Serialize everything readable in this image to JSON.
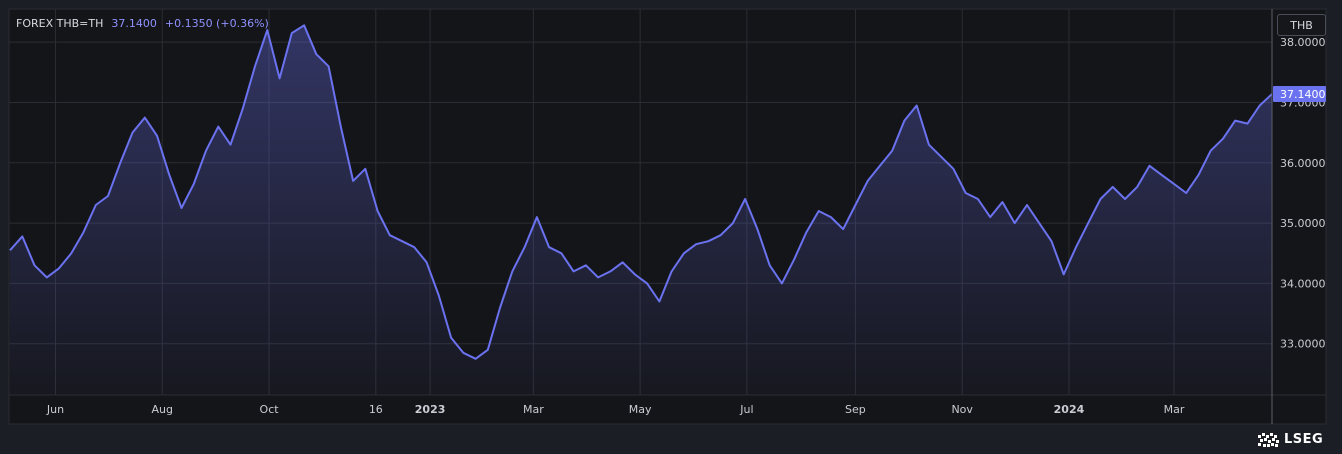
{
  "header": {
    "symbol": "FOREX THB=TH",
    "last": "37.1400",
    "change": "+0.1350 (+0.36%)"
  },
  "currency_badge": "THB",
  "brand": "LSEG",
  "colors": {
    "background": "#1b1e25",
    "plot_background": "#141519",
    "line": "#6b72f0",
    "last_price_tag": "#6b72f0",
    "grid": "#2a2d33",
    "axis_text": "#c9ccd3"
  },
  "chart_data": {
    "type": "area",
    "title": "FOREX THB=TH",
    "xlabel": "",
    "ylabel": "",
    "ylim": [
      32.15,
      38.55
    ],
    "grid": true,
    "y_ticks": [
      "33.0000",
      "34.0000",
      "35.0000",
      "36.0000",
      "37.0000",
      "38.0000"
    ],
    "y_tick_values": [
      33,
      34,
      35,
      36,
      37,
      38
    ],
    "x_ticks": [
      {
        "label": "Jun",
        "date": "2022-06-01",
        "bold": false
      },
      {
        "label": "Aug",
        "date": "2022-08-01",
        "bold": false
      },
      {
        "label": "Oct",
        "date": "2022-10-01",
        "bold": false
      },
      {
        "label": "16",
        "date": "2022-12-01",
        "bold": false
      },
      {
        "label": "2023",
        "date": "2023-01-01",
        "bold": true
      },
      {
        "label": "Mar",
        "date": "2023-03-01",
        "bold": false
      },
      {
        "label": "May",
        "date": "2023-05-01",
        "bold": false
      },
      {
        "label": "Jul",
        "date": "2023-07-01",
        "bold": false
      },
      {
        "label": "Sep",
        "date": "2023-09-01",
        "bold": false
      },
      {
        "label": "Nov",
        "date": "2023-11-01",
        "bold": false
      },
      {
        "label": "2024",
        "date": "2024-01-01",
        "bold": true
      },
      {
        "label": "Mar",
        "date": "2024-03-01",
        "bold": false
      }
    ],
    "last_value_label": "37.1400",
    "series": [
      {
        "name": "THB=TH",
        "points": [
          [
            "2022-05-06",
            34.55
          ],
          [
            "2022-05-13",
            34.78
          ],
          [
            "2022-05-20",
            34.3
          ],
          [
            "2022-05-27",
            34.1
          ],
          [
            "2022-06-03",
            34.25
          ],
          [
            "2022-06-10",
            34.5
          ],
          [
            "2022-06-17",
            34.85
          ],
          [
            "2022-06-24",
            35.3
          ],
          [
            "2022-07-01",
            35.45
          ],
          [
            "2022-07-08",
            36.0
          ],
          [
            "2022-07-15",
            36.5
          ],
          [
            "2022-07-22",
            36.75
          ],
          [
            "2022-07-29",
            36.45
          ],
          [
            "2022-08-05",
            35.8
          ],
          [
            "2022-08-12",
            35.25
          ],
          [
            "2022-08-19",
            35.65
          ],
          [
            "2022-08-26",
            36.2
          ],
          [
            "2022-09-02",
            36.6
          ],
          [
            "2022-09-09",
            36.3
          ],
          [
            "2022-09-16",
            36.9
          ],
          [
            "2022-09-23",
            37.6
          ],
          [
            "2022-09-30",
            38.2
          ],
          [
            "2022-10-07",
            37.4
          ],
          [
            "2022-10-14",
            38.15
          ],
          [
            "2022-10-21",
            38.28
          ],
          [
            "2022-10-28",
            37.8
          ],
          [
            "2022-11-04",
            37.6
          ],
          [
            "2022-11-11",
            36.6
          ],
          [
            "2022-11-18",
            35.7
          ],
          [
            "2022-11-25",
            35.9
          ],
          [
            "2022-12-02",
            35.2
          ],
          [
            "2022-12-09",
            34.8
          ],
          [
            "2022-12-16",
            34.7
          ],
          [
            "2022-12-23",
            34.6
          ],
          [
            "2022-12-30",
            34.35
          ],
          [
            "2023-01-06",
            33.8
          ],
          [
            "2023-01-13",
            33.1
          ],
          [
            "2023-01-20",
            32.85
          ],
          [
            "2023-01-27",
            32.75
          ],
          [
            "2023-02-03",
            32.9
          ],
          [
            "2023-02-10",
            33.6
          ],
          [
            "2023-02-17",
            34.2
          ],
          [
            "2023-02-24",
            34.6
          ],
          [
            "2023-03-03",
            35.1
          ],
          [
            "2023-03-10",
            34.6
          ],
          [
            "2023-03-17",
            34.5
          ],
          [
            "2023-03-24",
            34.2
          ],
          [
            "2023-03-31",
            34.3
          ],
          [
            "2023-04-07",
            34.1
          ],
          [
            "2023-04-14",
            34.2
          ],
          [
            "2023-04-21",
            34.35
          ],
          [
            "2023-04-28",
            34.15
          ],
          [
            "2023-05-05",
            34.0
          ],
          [
            "2023-05-12",
            33.7
          ],
          [
            "2023-05-19",
            34.2
          ],
          [
            "2023-05-26",
            34.5
          ],
          [
            "2023-06-02",
            34.65
          ],
          [
            "2023-06-09",
            34.7
          ],
          [
            "2023-06-16",
            34.8
          ],
          [
            "2023-06-23",
            35.0
          ],
          [
            "2023-06-30",
            35.4
          ],
          [
            "2023-07-07",
            34.9
          ],
          [
            "2023-07-14",
            34.3
          ],
          [
            "2023-07-21",
            34.0
          ],
          [
            "2023-07-28",
            34.4
          ],
          [
            "2023-08-04",
            34.85
          ],
          [
            "2023-08-11",
            35.2
          ],
          [
            "2023-08-18",
            35.1
          ],
          [
            "2023-08-25",
            34.9
          ],
          [
            "2023-09-01",
            35.3
          ],
          [
            "2023-09-08",
            35.7
          ],
          [
            "2023-09-15",
            35.95
          ],
          [
            "2023-09-22",
            36.2
          ],
          [
            "2023-09-29",
            36.7
          ],
          [
            "2023-10-06",
            36.95
          ],
          [
            "2023-10-13",
            36.3
          ],
          [
            "2023-10-20",
            36.1
          ],
          [
            "2023-10-27",
            35.9
          ],
          [
            "2023-11-03",
            35.5
          ],
          [
            "2023-11-10",
            35.4
          ],
          [
            "2023-11-17",
            35.1
          ],
          [
            "2023-11-24",
            35.35
          ],
          [
            "2023-12-01",
            35.0
          ],
          [
            "2023-12-08",
            35.3
          ],
          [
            "2023-12-15",
            35.0
          ],
          [
            "2023-12-22",
            34.7
          ],
          [
            "2023-12-29",
            34.15
          ],
          [
            "2024-01-05",
            34.6
          ],
          [
            "2024-01-12",
            35.0
          ],
          [
            "2024-01-19",
            35.4
          ],
          [
            "2024-01-26",
            35.6
          ],
          [
            "2024-02-02",
            35.4
          ],
          [
            "2024-02-09",
            35.6
          ],
          [
            "2024-02-16",
            35.95
          ],
          [
            "2024-02-23",
            35.8
          ],
          [
            "2024-03-01",
            35.65
          ],
          [
            "2024-03-08",
            35.5
          ],
          [
            "2024-03-15",
            35.8
          ],
          [
            "2024-03-22",
            36.2
          ],
          [
            "2024-03-29",
            36.4
          ],
          [
            "2024-04-05",
            36.7
          ],
          [
            "2024-04-12",
            36.65
          ],
          [
            "2024-04-19",
            36.95
          ],
          [
            "2024-04-26",
            37.14
          ]
        ]
      }
    ]
  }
}
